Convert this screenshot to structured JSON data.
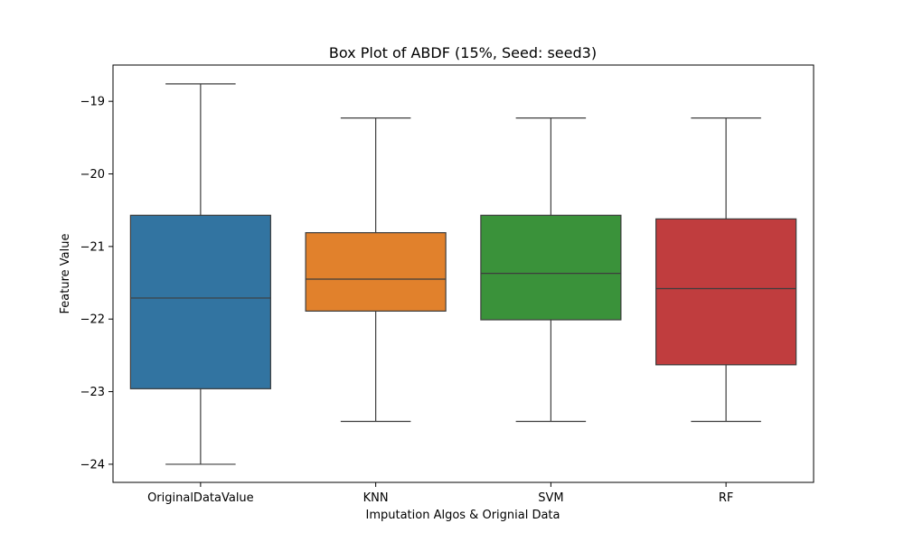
{
  "chart_data": {
    "type": "box",
    "title": "Box Plot of ABDF (15%, Seed: seed3)",
    "xlabel": "Imputation Algos & Orignial Data",
    "ylabel": "Feature Value",
    "ylim": [
      -24.25,
      -18.5
    ],
    "yticks": [
      -19,
      -20,
      -21,
      -22,
      -23,
      -24
    ],
    "ytick_labels": [
      "−19",
      "−20",
      "−21",
      "−22",
      "−23",
      "−24"
    ],
    "grid": false,
    "legend": "none",
    "categories": [
      "OriginalDataValue",
      "KNN",
      "SVM",
      "RF"
    ],
    "series": [
      {
        "category": "OriginalDataValue",
        "color": "#3274a1",
        "min": -24.0,
        "q1": -22.96,
        "median": -21.71,
        "q3": -20.57,
        "max": -18.76
      },
      {
        "category": "KNN",
        "color": "#e1812c",
        "min": -23.41,
        "q1": -21.89,
        "median": -21.45,
        "q3": -20.81,
        "max": -19.23
      },
      {
        "category": "SVM",
        "color": "#3a923a",
        "min": -23.41,
        "q1": -22.01,
        "median": -21.37,
        "q3": -20.57,
        "max": -19.23
      },
      {
        "category": "RF",
        "color": "#c03d3e",
        "min": -23.41,
        "q1": -22.63,
        "median": -21.58,
        "q3": -20.62,
        "max": -19.23
      }
    ]
  }
}
